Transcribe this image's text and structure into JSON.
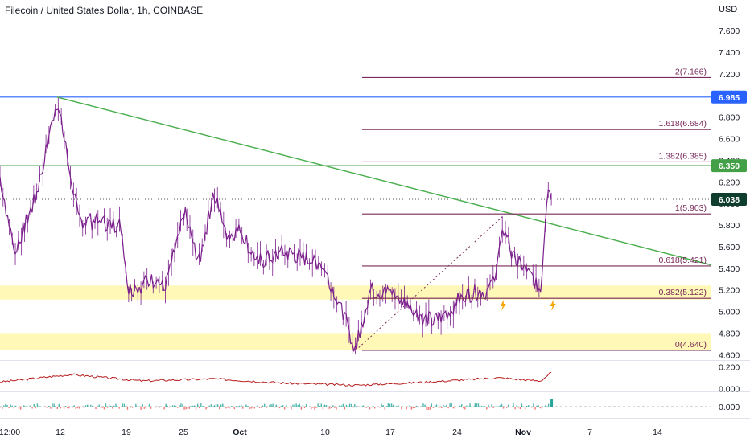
{
  "header": {
    "title": "Filecoin / United States Dollar, 1h, COINBASE",
    "currency": "USD"
  },
  "colors": {
    "up": "#26a69a",
    "down": "#ef5350",
    "candle": "#7b1f8c",
    "fib": "#7a2a5a",
    "trend_green": "#4caf50",
    "blue_line": "#2962ff",
    "zone": "#fff59d",
    "indicator": "#b71c1c",
    "lightning": "#f7a600"
  },
  "chart_data": [
    {
      "type": "candlestick",
      "title": "Filecoin / United States Dollar, 1h, COINBASE",
      "x_ticks": [
        "12:00",
        "12",
        "19",
        "25",
        "Oct",
        "10",
        "17",
        "24",
        "Nov",
        "7",
        "14"
      ],
      "y_ticks": [
        "7.600",
        "7.400",
        "7.200",
        "7.000",
        "6.800",
        "6.600",
        "6.400",
        "6.200",
        "6.000",
        "5.800",
        "5.600",
        "5.400",
        "5.200",
        "5.000",
        "4.800",
        "4.600"
      ],
      "y_tick_values": [
        7.6,
        7.4,
        7.2,
        7.0,
        6.8,
        6.6,
        6.4,
        6.2,
        6.0,
        5.8,
        5.6,
        5.4,
        5.2,
        5.0,
        4.8,
        4.6
      ],
      "ylim": [
        4.55,
        7.75
      ],
      "price_path": [
        [
          0,
          6.25
        ],
        [
          0.02,
          5.55
        ],
        [
          0.05,
          6.05
        ],
        [
          0.08,
          6.95
        ],
        [
          0.1,
          6.25
        ],
        [
          0.11,
          5.85
        ],
        [
          0.17,
          5.8
        ],
        [
          0.18,
          5.2
        ],
        [
          0.22,
          5.3
        ],
        [
          0.23,
          5.2
        ],
        [
          0.26,
          5.9
        ],
        [
          0.28,
          5.45
        ],
        [
          0.3,
          6.1
        ],
        [
          0.32,
          5.7
        ],
        [
          0.34,
          5.75
        ],
        [
          0.36,
          5.45
        ],
        [
          0.4,
          5.55
        ],
        [
          0.45,
          5.45
        ],
        [
          0.47,
          5.2
        ],
        [
          0.5,
          4.65
        ],
        [
          0.52,
          5.2
        ],
        [
          0.56,
          5.15
        ],
        [
          0.58,
          5.0
        ],
        [
          0.61,
          4.9
        ],
        [
          0.63,
          5.0
        ],
        [
          0.65,
          5.15
        ],
        [
          0.69,
          5.2
        ],
        [
          0.71,
          5.8
        ],
        [
          0.72,
          5.5
        ],
        [
          0.75,
          5.3
        ],
        [
          0.76,
          5.2
        ],
        [
          0.77,
          6.2
        ],
        [
          0.775,
          6.04
        ]
      ],
      "last_price": "6.038",
      "price_badges": [
        {
          "label": "6.985",
          "value": 6.985,
          "color": "#2962ff"
        },
        {
          "label": "6.350",
          "value": 6.35,
          "color": "#43a047"
        },
        {
          "label": "6.038",
          "value": 6.038,
          "color": "#0f3d2e"
        }
      ],
      "fib_levels": [
        {
          "label": "2(7.166)",
          "value": 7.166
        },
        {
          "label": "1.618(6.684)",
          "value": 6.684
        },
        {
          "label": "1.382(6.385)",
          "value": 6.385
        },
        {
          "label": "1(5.903)",
          "value": 5.903
        },
        {
          "label": "0.618(5.421)",
          "value": 5.421
        },
        {
          "label": "0.382(5.122)",
          "value": 5.122
        },
        {
          "label": "0(4.640)",
          "value": 4.64
        }
      ],
      "horizontal_lines": [
        {
          "value": 6.985,
          "color": "#2962ff"
        },
        {
          "value": 6.35,
          "color": "#43a047"
        }
      ],
      "trendline": {
        "from": [
          0.08,
          6.985
        ],
        "to": [
          1.0,
          5.43
        ],
        "color": "#4caf50"
      },
      "support_zones": [
        [
          5.11,
          5.24
        ],
        [
          4.64,
          4.8
        ]
      ],
      "dotted_line": {
        "from": [
          0.5,
          4.64
        ],
        "to": [
          0.71,
          5.9
        ]
      },
      "event_markers": [
        0.7,
        0.77
      ]
    },
    {
      "type": "line",
      "y_ticks": [
        "0.200",
        "0.000"
      ],
      "y_tick_values": [
        0.2,
        0.0
      ],
      "ylim": [
        -0.02,
        0.25
      ],
      "series_path": [
        [
          0,
          0.06
        ],
        [
          0.1,
          0.13
        ],
        [
          0.2,
          0.07
        ],
        [
          0.3,
          0.09
        ],
        [
          0.4,
          0.05
        ],
        [
          0.5,
          0.03
        ],
        [
          0.6,
          0.06
        ],
        [
          0.7,
          0.1
        ],
        [
          0.76,
          0.07
        ],
        [
          0.775,
          0.15
        ]
      ]
    },
    {
      "type": "histogram",
      "y_ticks": [
        "0.000"
      ],
      "y_tick_values": [
        0.0
      ],
      "ylim": [
        -1,
        1
      ],
      "spike_at": 0.775
    }
  ]
}
